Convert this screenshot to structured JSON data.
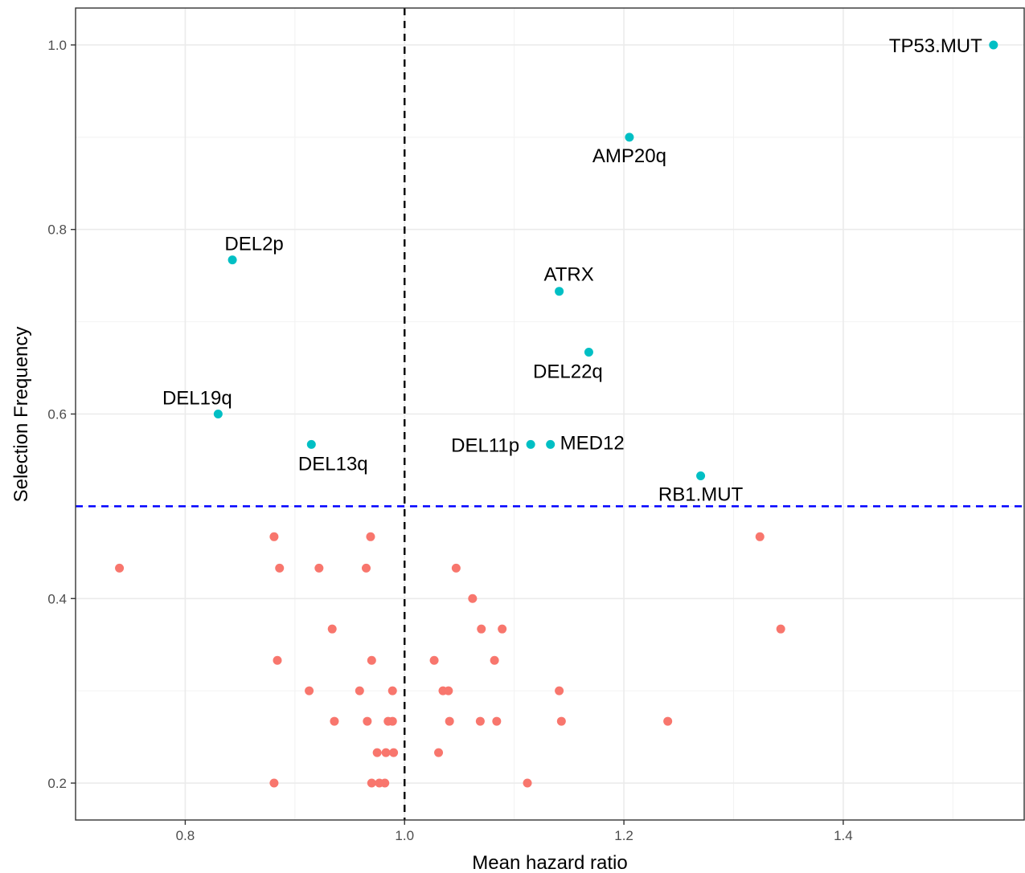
{
  "chart_data": {
    "type": "scatter",
    "xlabel": "Mean hazard ratio",
    "ylabel": "Selection Frequency",
    "xlim": [
      0.7,
      1.565
    ],
    "ylim": [
      0.16,
      1.04
    ],
    "x_ticks": [
      0.8,
      1.0,
      1.2,
      1.4
    ],
    "x_tick_labels": [
      "0.8",
      "1.0",
      "1.2",
      "1.4"
    ],
    "y_ticks": [
      0.2,
      0.4,
      0.6,
      0.8,
      1.0
    ],
    "y_tick_labels": [
      "0.2",
      "0.4",
      "0.6",
      "0.8",
      "1.0"
    ],
    "grid": true,
    "reference_lines": [
      {
        "orientation": "vertical",
        "value": 1.0,
        "color": "#000000",
        "style": "dashed"
      },
      {
        "orientation": "horizontal",
        "value": 0.5,
        "color": "#0000ff",
        "style": "dashed"
      }
    ],
    "series": [
      {
        "color": "#00bfc4",
        "points": [
          {
            "x": 1.537,
            "y": 1.0,
            "label": "TP53.MUT",
            "anchor": "left"
          },
          {
            "x": 1.205,
            "y": 0.9,
            "label": "AMP20q",
            "anchor": "below"
          },
          {
            "x": 0.843,
            "y": 0.767,
            "label": "DEL2p",
            "anchor": "above-right"
          },
          {
            "x": 1.141,
            "y": 0.733,
            "label": "ATRX",
            "anchor": "above"
          },
          {
            "x": 1.168,
            "y": 0.667,
            "label": "DEL22q",
            "anchor": "below-left"
          },
          {
            "x": 0.83,
            "y": 0.6,
            "label": "DEL19q",
            "anchor": "above-left"
          },
          {
            "x": 0.915,
            "y": 0.567,
            "label": "DEL13q",
            "anchor": "below-right"
          },
          {
            "x": 1.115,
            "y": 0.567,
            "label": "DEL11p",
            "anchor": "left"
          },
          {
            "x": 1.133,
            "y": 0.567,
            "label": "MED12",
            "anchor": "right"
          },
          {
            "x": 1.27,
            "y": 0.533,
            "label": "RB1.MUT",
            "anchor": "below"
          }
        ]
      },
      {
        "color": "#f8766d",
        "points": [
          {
            "x": 0.881,
            "y": 0.467
          },
          {
            "x": 0.969,
            "y": 0.467
          },
          {
            "x": 1.324,
            "y": 0.467
          },
          {
            "x": 0.74,
            "y": 0.433
          },
          {
            "x": 0.886,
            "y": 0.433
          },
          {
            "x": 0.922,
            "y": 0.433
          },
          {
            "x": 0.965,
            "y": 0.433
          },
          {
            "x": 1.047,
            "y": 0.433
          },
          {
            "x": 1.062,
            "y": 0.4
          },
          {
            "x": 0.934,
            "y": 0.367
          },
          {
            "x": 1.07,
            "y": 0.367
          },
          {
            "x": 1.089,
            "y": 0.367
          },
          {
            "x": 1.343,
            "y": 0.367
          },
          {
            "x": 0.884,
            "y": 0.333
          },
          {
            "x": 0.97,
            "y": 0.333
          },
          {
            "x": 1.027,
            "y": 0.333
          },
          {
            "x": 1.082,
            "y": 0.333
          },
          {
            "x": 0.913,
            "y": 0.3
          },
          {
            "x": 0.959,
            "y": 0.3
          },
          {
            "x": 0.989,
            "y": 0.3
          },
          {
            "x": 1.035,
            "y": 0.3
          },
          {
            "x": 1.04,
            "y": 0.3
          },
          {
            "x": 1.141,
            "y": 0.3
          },
          {
            "x": 0.936,
            "y": 0.267
          },
          {
            "x": 0.966,
            "y": 0.267
          },
          {
            "x": 0.985,
            "y": 0.267
          },
          {
            "x": 0.989,
            "y": 0.267
          },
          {
            "x": 1.041,
            "y": 0.267
          },
          {
            "x": 1.069,
            "y": 0.267
          },
          {
            "x": 1.084,
            "y": 0.267
          },
          {
            "x": 1.143,
            "y": 0.267
          },
          {
            "x": 1.24,
            "y": 0.267
          },
          {
            "x": 0.975,
            "y": 0.233
          },
          {
            "x": 0.983,
            "y": 0.233
          },
          {
            "x": 0.99,
            "y": 0.233
          },
          {
            "x": 1.031,
            "y": 0.233
          },
          {
            "x": 0.881,
            "y": 0.2
          },
          {
            "x": 0.97,
            "y": 0.2
          },
          {
            "x": 0.977,
            "y": 0.2
          },
          {
            "x": 0.982,
            "y": 0.2
          },
          {
            "x": 1.112,
            "y": 0.2
          }
        ]
      }
    ]
  }
}
